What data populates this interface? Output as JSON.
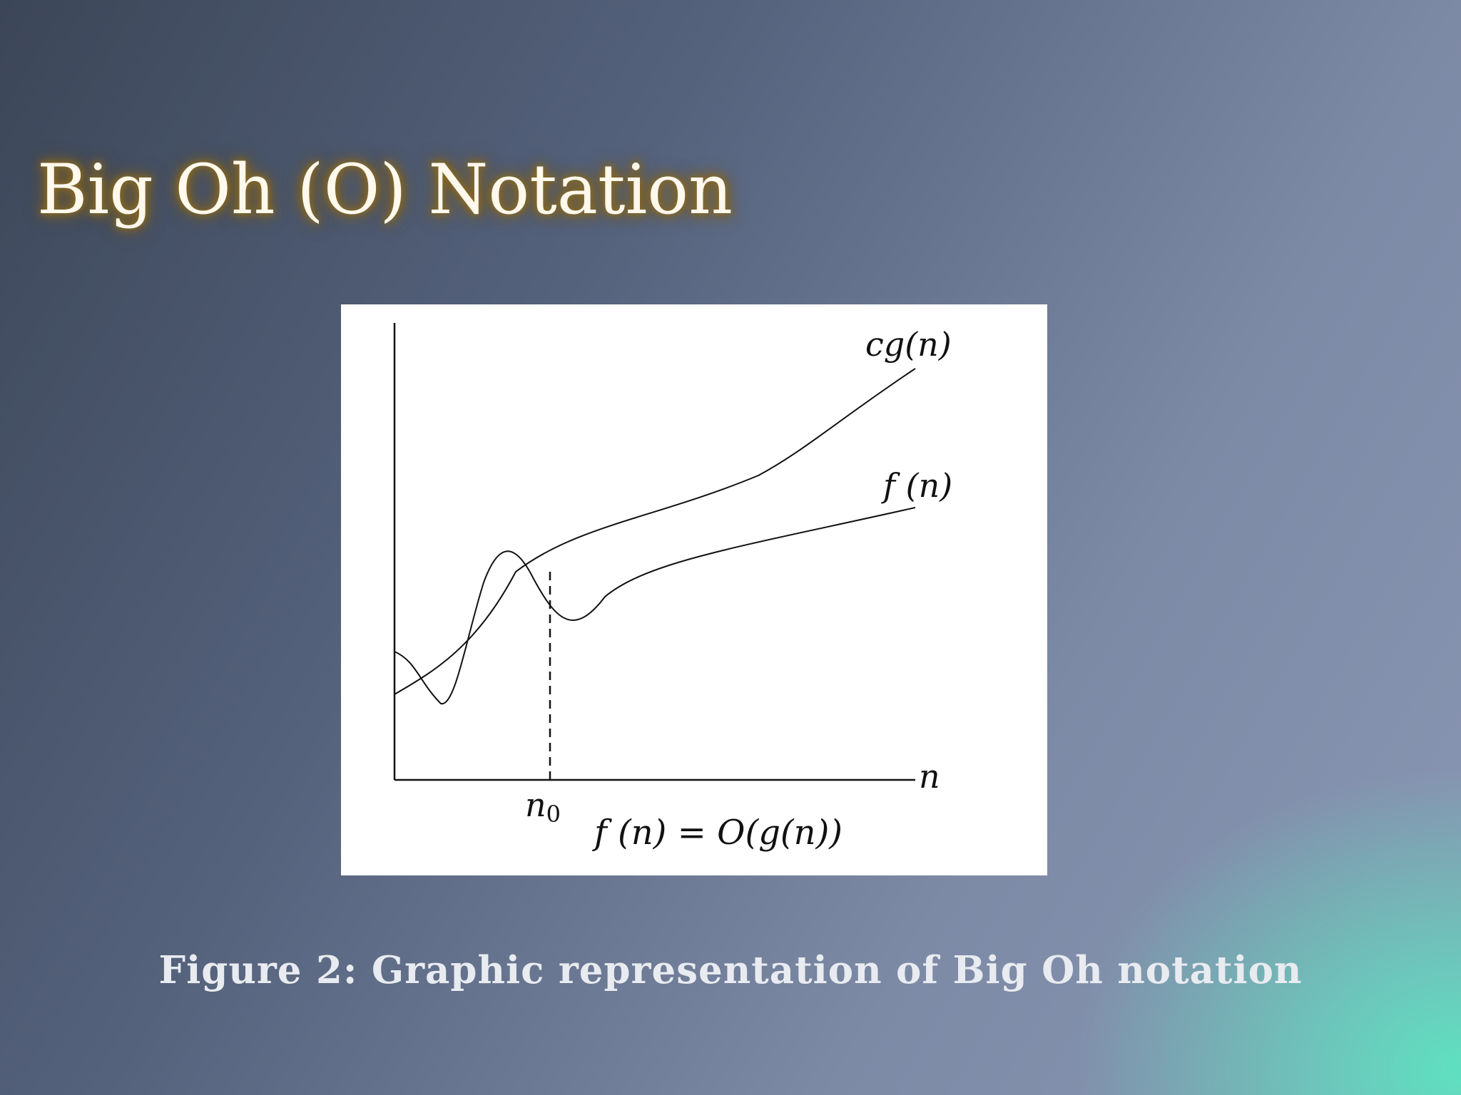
{
  "slide": {
    "title": "Big Oh (O) Notation",
    "caption": "Figure 2: Graphic representation of Big Oh notation"
  },
  "diagram": {
    "curve_upper_label": "cg(n)",
    "curve_lower_label": "f (n)",
    "x_axis_label": "n",
    "threshold_label": "n",
    "threshold_subscript": "0",
    "formula": "f (n) = O(g(n))"
  },
  "colors": {
    "title_glow": "#8a6a22",
    "title_text": "#fff8ec",
    "caption_text": "#e8ebf0",
    "figure_bg": "#ffffff",
    "line": "#111111"
  }
}
